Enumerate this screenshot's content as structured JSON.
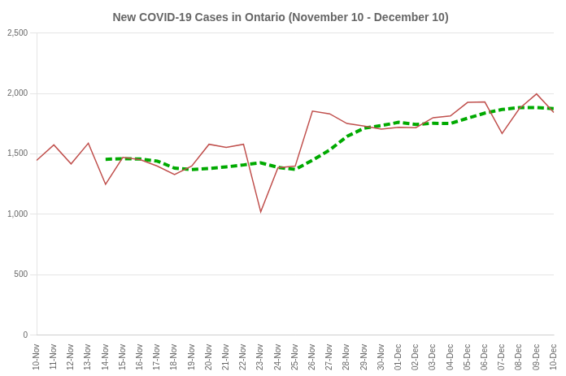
{
  "chart_data": {
    "type": "line",
    "title": "New COVID-19 Cases in Ontario (November 10 - December 10)",
    "categories": [
      "10-Nov",
      "11-Nov",
      "12-Nov",
      "13-Nov",
      "14-Nov",
      "15-Nov",
      "16-Nov",
      "17-Nov",
      "18-Nov",
      "19-Nov",
      "20-Nov",
      "21-Nov",
      "22-Nov",
      "23-Nov",
      "24-Nov",
      "25-Nov",
      "26-Nov",
      "27-Nov",
      "28-Nov",
      "29-Nov",
      "30-Nov",
      "01-Dec",
      "02-Dec",
      "03-Dec",
      "04-Dec",
      "05-Dec",
      "06-Dec",
      "07-Dec",
      "08-Dec",
      "09-Dec",
      "10-Dec"
    ],
    "series": [
      {
        "color": "#c0504d",
        "line_style": "solid",
        "values": [
          1447,
          1575,
          1418,
          1589,
          1249,
          1472,
          1454,
          1400,
          1329,
          1400,
          1580,
          1555,
          1580,
          1021,
          1387,
          1399,
          1855,
          1832,
          1752,
          1730,
          1705,
          1720,
          1718,
          1800,
          1815,
          1927,
          1930,
          1669,
          1875,
          1997,
          1844
        ]
      },
      {
        "color": "#00aa00",
        "line_style": "dashed",
        "values": [
          null,
          null,
          null,
          null,
          1456,
          1461,
          1458,
          1441,
          1383,
          1371,
          1380,
          1393,
          1409,
          1427,
          1389,
          1372,
          1448,
          1533,
          1645,
          1714,
          1735,
          1762,
          1745,
          1754,
          1752,
          1796,
          1838,
          1868,
          1884,
          1884,
          1876
        ]
      }
    ],
    "ylim": [
      0,
      2500
    ],
    "yticks": [
      0,
      500,
      {
        "value": 1000,
        "label": "1,000"
      },
      {
        "value": 1500,
        "label": "1,500"
      },
      {
        "value": 2000,
        "label": "2,000"
      },
      {
        "value": 2500,
        "label": "2,500"
      }
    ],
    "grid": "y"
  }
}
